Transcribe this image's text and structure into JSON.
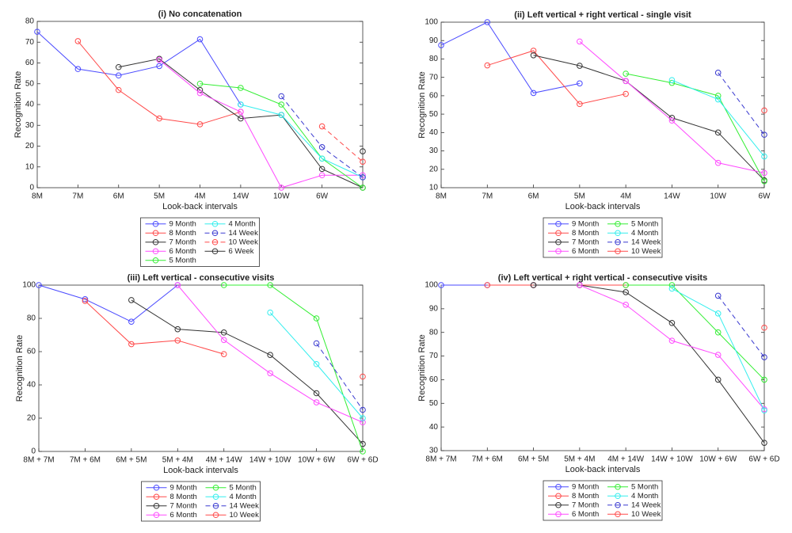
{
  "chart_data": [
    {
      "type": "line",
      "title": "(i) No concatenation",
      "xlabel": "Look-back intervals",
      "ylabel": "Recognition Rate",
      "categories": [
        "8M",
        "7M",
        "6M",
        "5M",
        "4M",
        "14W",
        "10W",
        "6W",
        null
      ],
      "ylim": [
        0,
        80
      ],
      "yticks": [
        0,
        10,
        20,
        30,
        40,
        50,
        60,
        70,
        80
      ],
      "series": [
        {
          "name": "9 Month",
          "color": "#4a4aff",
          "values": [
            75,
            57.1,
            54,
            58.5,
            71.4,
            40,
            null,
            null,
            null
          ]
        },
        {
          "name": "8 Month",
          "color": "#ff4a4a",
          "values": [
            null,
            70.5,
            47,
            33.3,
            30.5,
            36.5,
            null,
            null,
            null
          ]
        },
        {
          "name": "7 Month",
          "color": "#333333",
          "values": [
            null,
            null,
            58,
            62,
            47,
            33.3,
            35,
            9,
            0
          ]
        },
        {
          "name": "6 Month",
          "color": "#ff4aff",
          "values": [
            null,
            null,
            null,
            61.5,
            45.5,
            36.5,
            0,
            6,
            6
          ]
        },
        {
          "name": "5 Month",
          "color": "#33ee33",
          "values": [
            null,
            null,
            null,
            null,
            50,
            48,
            40,
            14,
            0
          ]
        },
        {
          "name": "4 Month",
          "color": "#33eeee",
          "values": [
            null,
            null,
            null,
            null,
            null,
            40,
            35,
            14,
            5
          ]
        },
        {
          "name": "14 Week",
          "color": "#3a3ad0",
          "line_style": "dashed",
          "values": [
            null,
            null,
            null,
            null,
            null,
            null,
            44,
            19.5,
            5
          ]
        },
        {
          "name": "10 Week",
          "color": "#ff4a4a",
          "line_style": "dashed",
          "values": [
            null,
            null,
            null,
            null,
            null,
            null,
            null,
            29.5,
            12.5
          ]
        },
        {
          "name": "6 Week",
          "color": "#333333",
          "values": [
            null,
            null,
            null,
            null,
            null,
            null,
            null,
            null,
            17.5
          ]
        }
      ]
    },
    {
      "type": "line",
      "title": "(ii) Left vertical + right vertical - single visit",
      "xlabel": "Look-back intervals",
      "ylabel": "Recognition Rate",
      "categories": [
        "8M",
        "7M",
        "6M",
        "5M",
        "4M",
        "14W",
        "10W",
        "6W"
      ],
      "ylim": [
        10,
        100
      ],
      "yticks": [
        10,
        20,
        30,
        40,
        50,
        60,
        70,
        80,
        90,
        100
      ],
      "series": [
        {
          "name": "9 Month",
          "color": "#4a4aff",
          "values": [
            87.5,
            100,
            61.5,
            66.7,
            null,
            null,
            null,
            null
          ]
        },
        {
          "name": "8 Month",
          "color": "#ff4a4a",
          "values": [
            null,
            76.5,
            84.5,
            55.5,
            61,
            null,
            null,
            null
          ]
        },
        {
          "name": "7 Month",
          "color": "#333333",
          "values": [
            null,
            null,
            82,
            76.3,
            68,
            48,
            40,
            14
          ]
        },
        {
          "name": "6 Month",
          "color": "#ff4aff",
          "values": [
            null,
            null,
            null,
            89.5,
            68,
            46.5,
            23.5,
            18
          ]
        },
        {
          "name": "5 Month",
          "color": "#33ee33",
          "values": [
            null,
            null,
            null,
            null,
            72,
            67,
            60,
            13.5
          ]
        },
        {
          "name": "4 Month",
          "color": "#33eeee",
          "values": [
            null,
            null,
            null,
            null,
            null,
            68.5,
            58,
            27
          ]
        },
        {
          "name": "14 Week",
          "color": "#3a3ad0",
          "line_style": "dashed",
          "values": [
            null,
            null,
            null,
            null,
            null,
            null,
            72.5,
            38.8
          ]
        },
        {
          "name": "10 Week",
          "color": "#ff4a4a",
          "values": [
            null,
            null,
            null,
            null,
            null,
            null,
            null,
            52
          ]
        }
      ]
    },
    {
      "type": "line",
      "title": "(iii) Left vertical - consecutive visits",
      "xlabel": "Look-back intervals",
      "ylabel": "Recognition Rate",
      "categories": [
        "8M + 7M",
        "7M + 6M",
        "6M + 5M",
        "5M + 4M",
        "4M + 14W",
        "14W + 10W",
        "10W + 6W",
        "6W + 6D"
      ],
      "ylim": [
        0,
        100
      ],
      "yticks": [
        0,
        20,
        40,
        60,
        80,
        100
      ],
      "series": [
        {
          "name": "9 Month",
          "color": "#4a4aff",
          "values": [
            100,
            91.5,
            78,
            100,
            null,
            null,
            null,
            null
          ]
        },
        {
          "name": "8 Month",
          "color": "#ff4a4a",
          "values": [
            null,
            90.5,
            64.5,
            66.7,
            58.5,
            null,
            null,
            null
          ]
        },
        {
          "name": "7 Month",
          "color": "#333333",
          "values": [
            null,
            null,
            91,
            73.5,
            71.5,
            58,
            35,
            4.5
          ]
        },
        {
          "name": "6 Month",
          "color": "#ff4aff",
          "values": [
            null,
            null,
            null,
            100,
            67,
            47,
            29.5,
            17.5
          ]
        },
        {
          "name": "5 Month",
          "color": "#33ee33",
          "values": [
            null,
            null,
            null,
            null,
            100,
            100,
            80,
            0
          ]
        },
        {
          "name": "4 Month",
          "color": "#33eeee",
          "values": [
            null,
            null,
            null,
            null,
            null,
            83.5,
            52.5,
            20
          ]
        },
        {
          "name": "14 Week",
          "color": "#3a3ad0",
          "line_style": "dashed",
          "values": [
            null,
            null,
            null,
            null,
            null,
            null,
            65,
            25
          ]
        },
        {
          "name": "10 Week",
          "color": "#ff4a4a",
          "values": [
            null,
            null,
            null,
            null,
            null,
            null,
            null,
            45
          ]
        }
      ]
    },
    {
      "type": "line",
      "title": "(iv) Left vertical + right vertical - consecutive visits",
      "xlabel": "Look-back intervals",
      "ylabel": "Recognition Rate",
      "categories": [
        "8M + 7M",
        "7M + 6M",
        "6M + 5M",
        "5M + 4M",
        "4M + 14W",
        "14W + 10W",
        "10W + 6W",
        "6W + 6D"
      ],
      "ylim": [
        30,
        100
      ],
      "yticks": [
        30,
        40,
        50,
        60,
        70,
        80,
        90,
        100
      ],
      "series": [
        {
          "name": "9 Month",
          "color": "#4a4aff",
          "values": [
            100,
            100,
            100,
            100,
            null,
            null,
            null,
            null
          ]
        },
        {
          "name": "8 Month",
          "color": "#ff4a4a",
          "values": [
            null,
            100,
            100,
            100,
            100,
            null,
            null,
            null
          ]
        },
        {
          "name": "7 Month",
          "color": "#333333",
          "values": [
            null,
            null,
            100,
            100,
            97,
            84,
            60,
            33.3
          ]
        },
        {
          "name": "6 Month",
          "color": "#ff4aff",
          "values": [
            null,
            null,
            null,
            100,
            91.7,
            76.5,
            70.5,
            47.5
          ]
        },
        {
          "name": "5 Month",
          "color": "#33ee33",
          "values": [
            null,
            null,
            null,
            null,
            100,
            100,
            80,
            60
          ]
        },
        {
          "name": "4 Month",
          "color": "#33eeee",
          "values": [
            null,
            null,
            null,
            null,
            null,
            98.5,
            88,
            47
          ]
        },
        {
          "name": "14 Week",
          "color": "#3a3ad0",
          "line_style": "dashed",
          "values": [
            null,
            null,
            null,
            null,
            null,
            null,
            95.5,
            69.5
          ]
        },
        {
          "name": "10 Week",
          "color": "#ff4a4a",
          "values": [
            null,
            null,
            null,
            null,
            null,
            null,
            null,
            82
          ]
        }
      ]
    }
  ]
}
